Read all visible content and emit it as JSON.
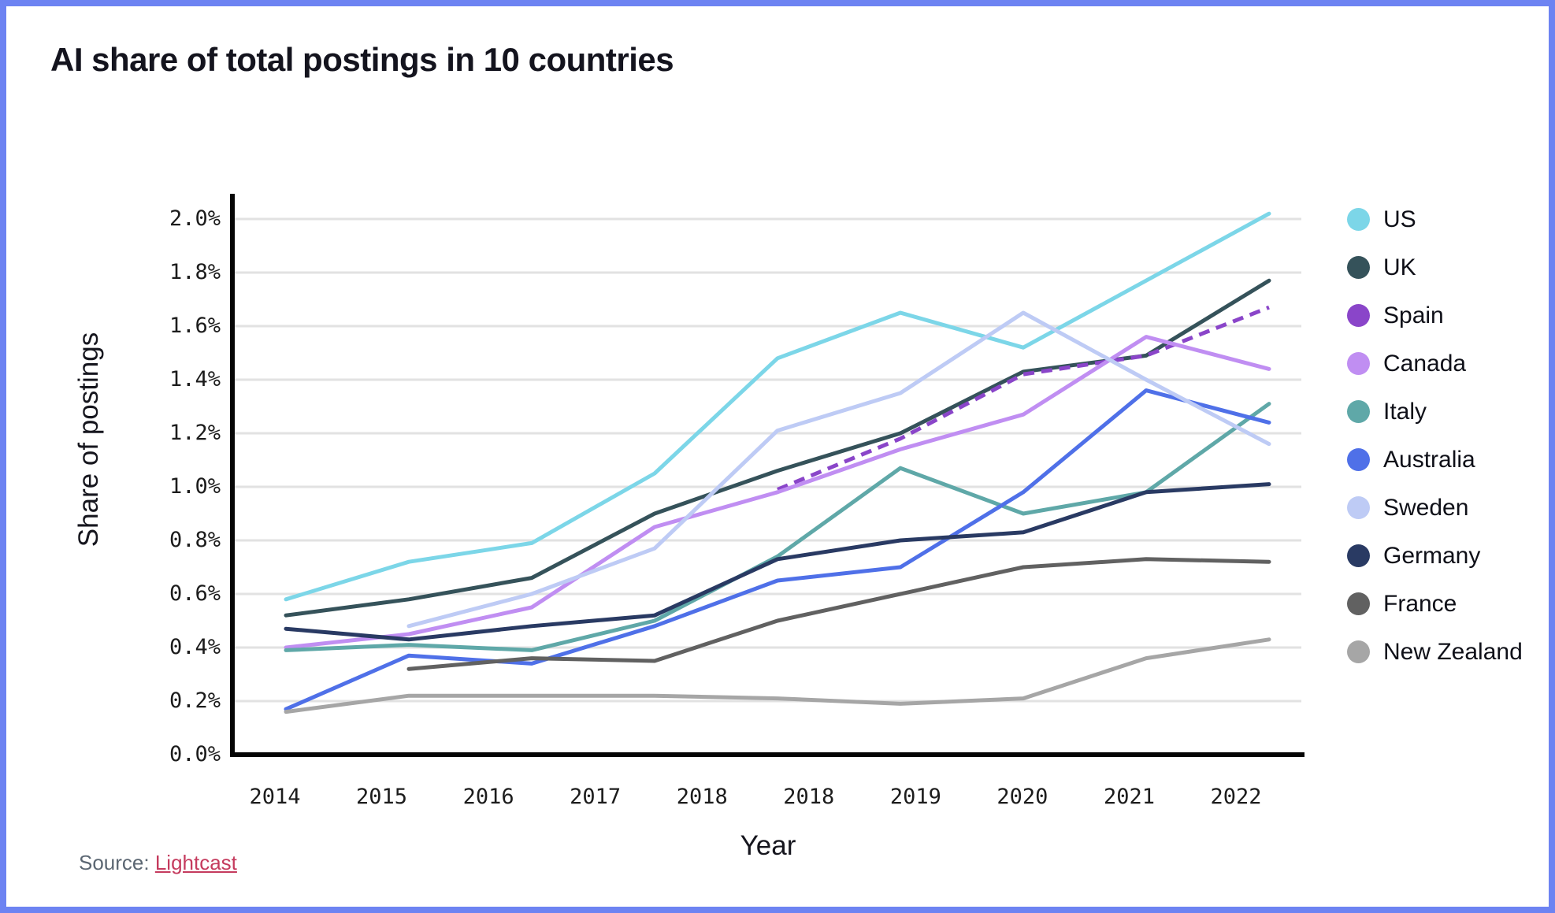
{
  "page": {
    "title": "AI share of total postings in 10 countries",
    "source_label": "Source:",
    "source_link_label": "Lightcast",
    "frame_color": "#6d83f2"
  },
  "chart_data": {
    "type": "line",
    "title": "AI share of total postings in 10 countries",
    "xlabel": "Year",
    "ylabel": "Share of postings",
    "x_tick_labels": [
      "2014",
      "2015",
      "2016",
      "2017",
      "2018",
      "2018",
      "2019",
      "2020",
      "2021",
      "2022"
    ],
    "years": [
      2014,
      2015,
      2016,
      2017,
      2018,
      2019,
      2020,
      2021,
      2022
    ],
    "y_tick_labels": [
      "0.0%",
      "0.2%",
      "0.4%",
      "0.6%",
      "0.8%",
      "1.0%",
      "1.2%",
      "1.4%",
      "1.6%",
      "1.8%",
      "2.0%"
    ],
    "ylim": [
      0.0,
      2.1
    ],
    "y_unit": "percent",
    "grid": "horizontal",
    "legend_position": "right",
    "series": [
      {
        "name": "US",
        "color": "#7cd6e8",
        "dashed": false,
        "values": [
          0.58,
          0.72,
          0.79,
          1.05,
          1.48,
          1.65,
          1.52,
          1.77,
          2.02
        ]
      },
      {
        "name": "UK",
        "color": "#35525a",
        "dashed": false,
        "values": [
          0.52,
          0.58,
          0.66,
          0.9,
          1.06,
          1.2,
          1.43,
          1.49,
          1.77
        ]
      },
      {
        "name": "Spain",
        "color": "#8a45c9",
        "dashed": true,
        "values": [
          null,
          null,
          null,
          null,
          0.99,
          1.18,
          1.42,
          1.49,
          1.67
        ]
      },
      {
        "name": "Canada",
        "color": "#c08ef2",
        "dashed": false,
        "values": [
          0.4,
          0.45,
          0.55,
          0.85,
          0.98,
          1.14,
          1.27,
          1.56,
          1.44
        ]
      },
      {
        "name": "Italy",
        "color": "#5fa8a8",
        "dashed": false,
        "values": [
          0.39,
          0.41,
          0.39,
          0.5,
          0.74,
          1.07,
          0.9,
          0.98,
          1.31
        ]
      },
      {
        "name": "Australia",
        "color": "#4f70e8",
        "dashed": false,
        "values": [
          0.17,
          0.37,
          0.34,
          0.48,
          0.65,
          0.7,
          0.98,
          1.36,
          1.24
        ]
      },
      {
        "name": "Sweden",
        "color": "#becbf5",
        "dashed": false,
        "values": [
          null,
          0.48,
          0.6,
          0.77,
          1.21,
          1.35,
          1.65,
          1.4,
          1.16
        ]
      },
      {
        "name": "Germany",
        "color": "#293a63",
        "dashed": false,
        "values": [
          0.47,
          0.43,
          0.48,
          0.52,
          0.73,
          0.8,
          0.83,
          0.98,
          1.01
        ]
      },
      {
        "name": "France",
        "color": "#616161",
        "dashed": false,
        "values": [
          null,
          0.32,
          0.36,
          0.35,
          0.5,
          0.6,
          0.7,
          0.73,
          0.72
        ]
      },
      {
        "name": "New Zealand",
        "color": "#a6a6a6",
        "dashed": false,
        "values": [
          0.16,
          0.22,
          0.22,
          0.22,
          0.21,
          0.19,
          0.21,
          0.36,
          0.43
        ]
      }
    ]
  }
}
